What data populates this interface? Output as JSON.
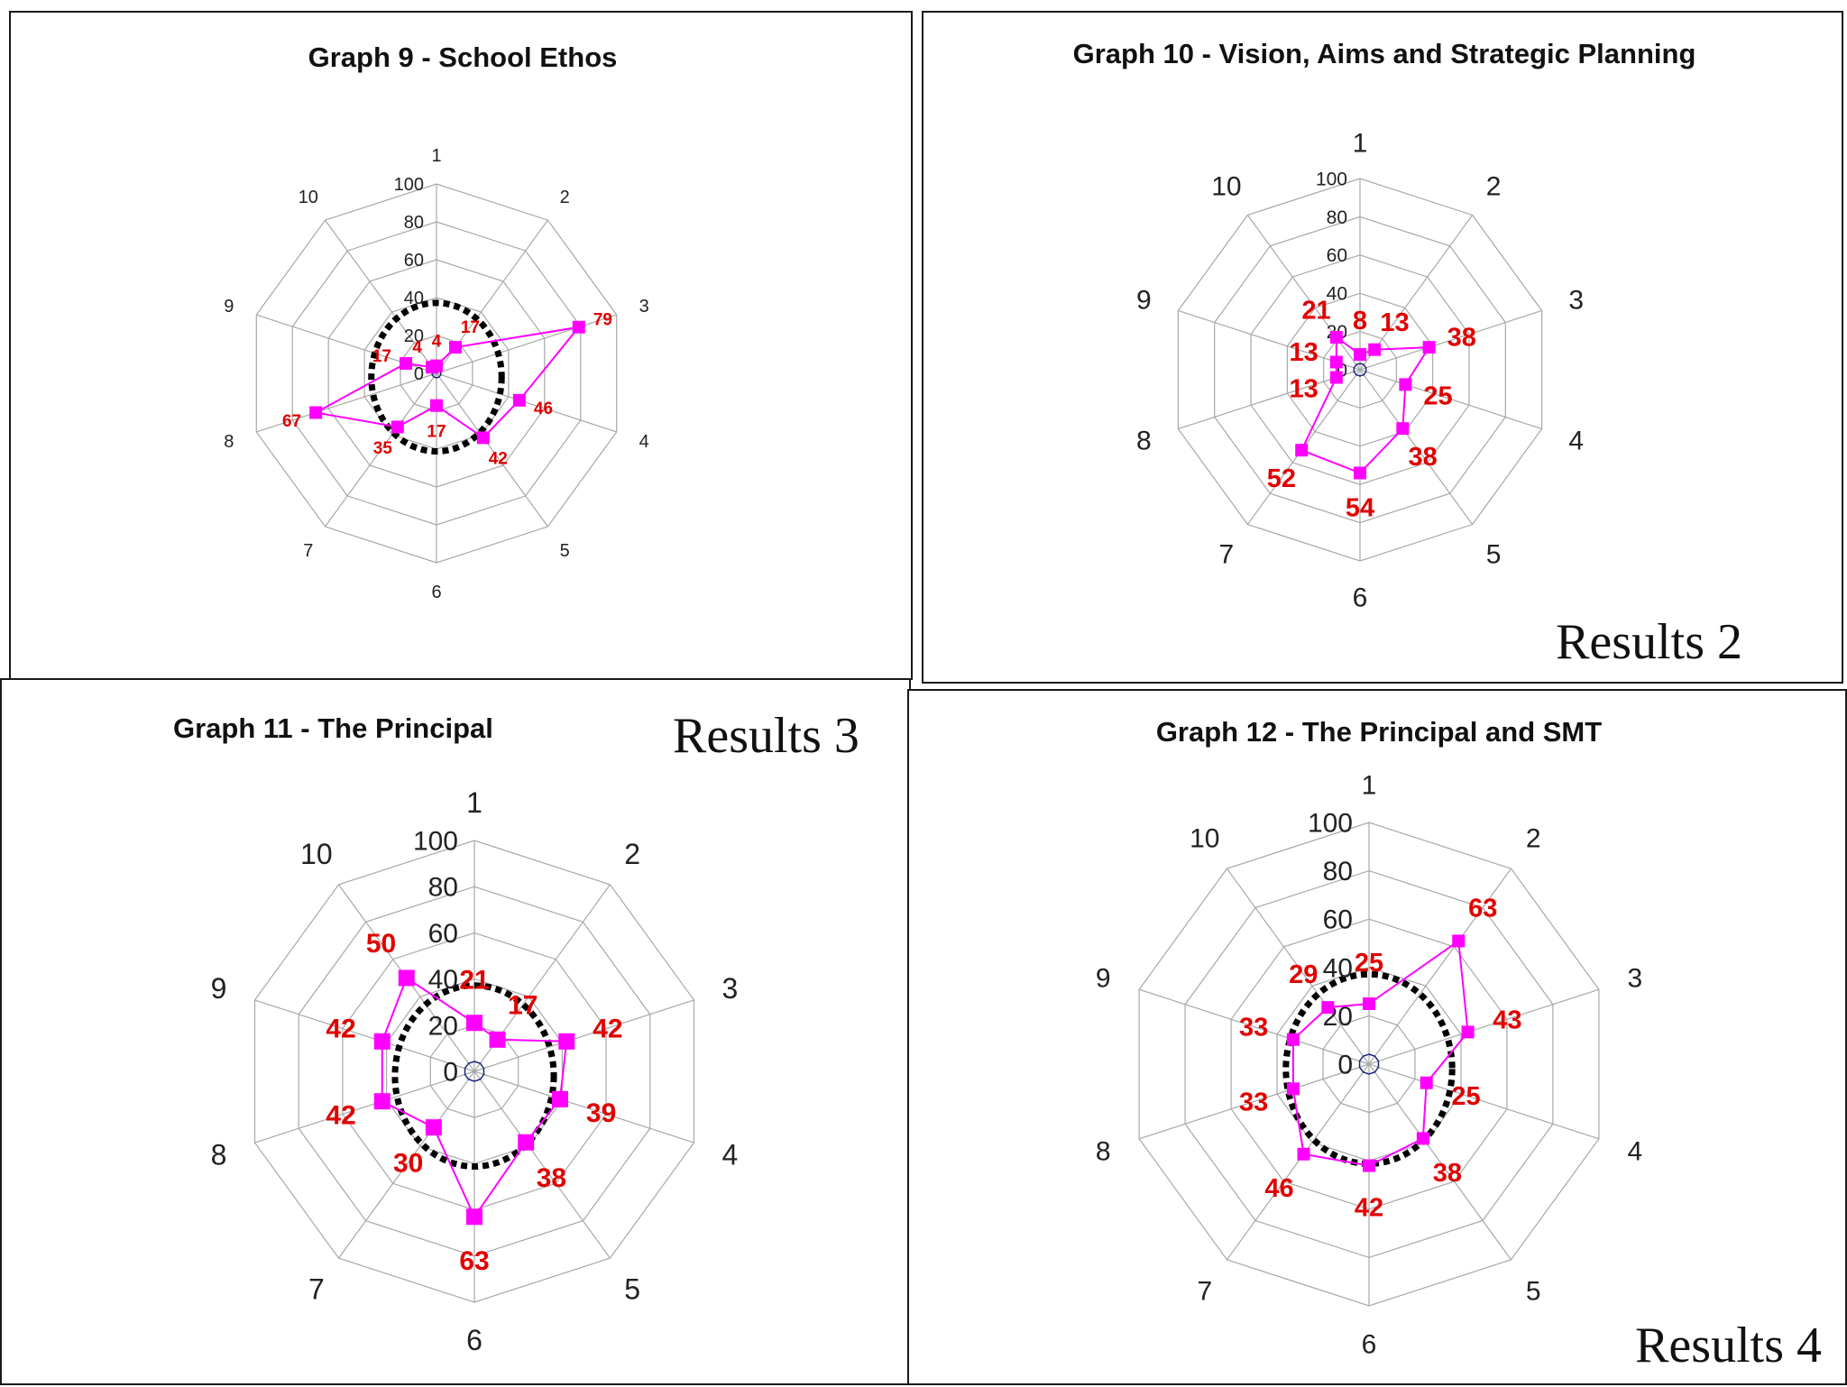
{
  "charts": [
    {
      "title": "Graph 9 - School Ethos",
      "results_label": "",
      "spokes": [
        "1",
        "2",
        "3",
        "4",
        "5",
        "6",
        "7",
        "8",
        "9",
        "10"
      ],
      "ticks": [
        "0",
        "20",
        "40",
        "60",
        "80",
        "100"
      ],
      "benchmark_ring": 40
    },
    {
      "title": "Graph 10 - Vision, Aims and Strategic Planning",
      "results_label": "Results 2",
      "spokes": [
        "1",
        "2",
        "3",
        "4",
        "5",
        "6",
        "7",
        "8",
        "9",
        "10"
      ],
      "ticks": [
        "0",
        "20",
        "40",
        "60",
        "80",
        "100"
      ],
      "benchmark_ring": null
    },
    {
      "title": "Graph 11 - The Principal",
      "results_label": "Results 3",
      "spokes": [
        "1",
        "2",
        "3",
        "4",
        "5",
        "6",
        "7",
        "8",
        "9",
        "10"
      ],
      "ticks": [
        "0",
        "20",
        "40",
        "60",
        "80",
        "100"
      ],
      "benchmark_ring": 40
    },
    {
      "title": "Graph 12 - The Principal and SMT",
      "results_label": "Results 4",
      "spokes": [
        "1",
        "2",
        "3",
        "4",
        "5",
        "6",
        "7",
        "8",
        "9",
        "10"
      ],
      "ticks": [
        "0",
        "20",
        "40",
        "60",
        "80",
        "100"
      ],
      "benchmark_ring": 40
    }
  ],
  "chart_data": [
    {
      "type": "radar",
      "title": "Graph 9 - School Ethos",
      "categories": [
        "1",
        "2",
        "3",
        "4",
        "5",
        "6",
        "7",
        "8",
        "9",
        "10"
      ],
      "values": [
        4,
        17,
        79,
        46,
        42,
        17,
        35,
        67,
        17,
        4
      ],
      "data_labels": [
        "4",
        "17",
        "79",
        "46",
        "42",
        "17",
        "35",
        "67",
        "17",
        "4"
      ],
      "rlim": [
        0,
        100
      ],
      "grid": true,
      "benchmark_ring": 40,
      "series_color": "#ff00ff",
      "label_color": "#e00000"
    },
    {
      "type": "radar",
      "title": "Graph 10 - Vision, Aims and Strategic Planning",
      "categories": [
        "1",
        "2",
        "3",
        "4",
        "5",
        "6",
        "7",
        "8",
        "9",
        "10"
      ],
      "values": [
        8,
        13,
        38,
        25,
        38,
        54,
        52,
        13,
        13,
        21
      ],
      "data_labels": [
        "8",
        "13",
        "38",
        "25",
        "38",
        "54",
        "52",
        "13",
        "13",
        "21"
      ],
      "rlim": [
        0,
        100
      ],
      "grid": true,
      "series_color": "#ff00ff",
      "label_color": "#e00000"
    },
    {
      "type": "radar",
      "title": "Graph 11 - The Principal",
      "categories": [
        "1",
        "2",
        "3",
        "4",
        "5",
        "6",
        "7",
        "8",
        "9",
        "10"
      ],
      "values": [
        21,
        17,
        42,
        39,
        38,
        63,
        30,
        42,
        42,
        50
      ],
      "data_labels": [
        "21",
        "17",
        "42",
        "39",
        "38",
        "63",
        "30",
        "42",
        "42",
        "50"
      ],
      "rlim": [
        0,
        100
      ],
      "grid": true,
      "benchmark_ring": 40,
      "series_color": "#ff00ff",
      "label_color": "#e00000"
    },
    {
      "type": "radar",
      "title": "Graph 12 - The Principal and SMT",
      "categories": [
        "1",
        "2",
        "3",
        "4",
        "5",
        "6",
        "7",
        "8",
        "9",
        "10"
      ],
      "values": [
        25,
        63,
        43,
        25,
        38,
        42,
        46,
        33,
        33,
        29
      ],
      "data_labels": [
        "25",
        "63",
        "43",
        "25",
        "38",
        "42",
        "46",
        "33",
        "33",
        "29"
      ],
      "rlim": [
        0,
        100
      ],
      "grid": true,
      "benchmark_ring": 40,
      "series_color": "#ff00ff",
      "label_color": "#e00000"
    }
  ]
}
